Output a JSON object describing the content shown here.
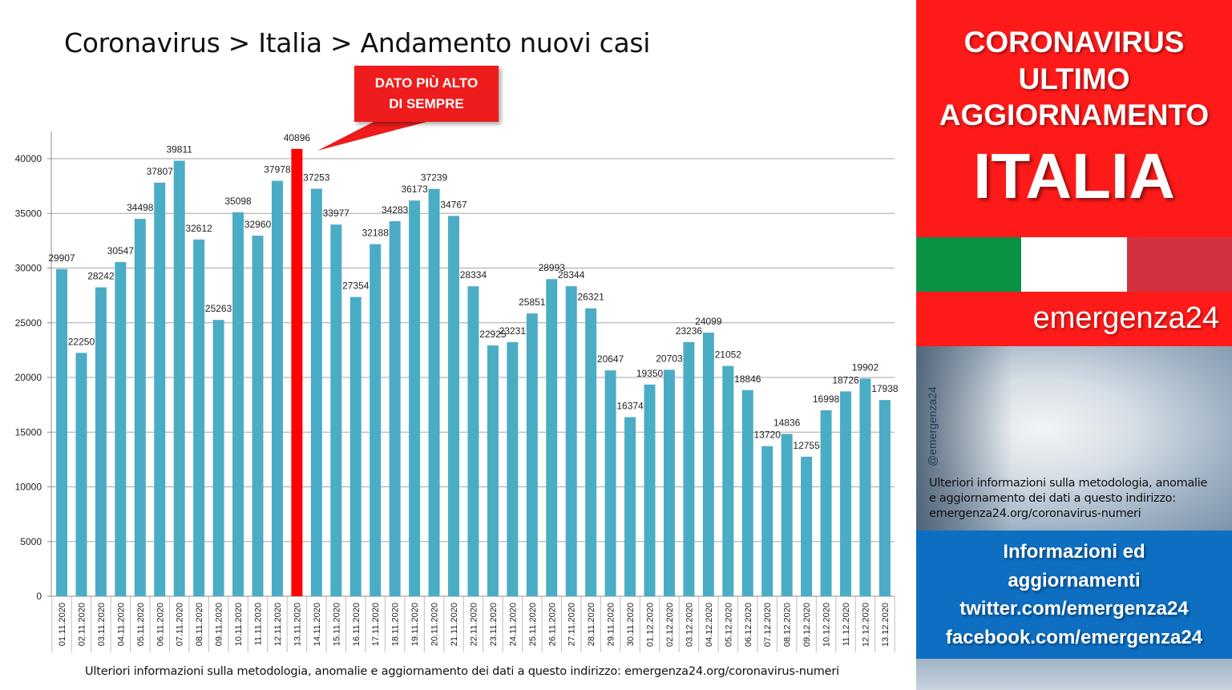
{
  "title": "Coronavirus > Italia > Andamento nuovi casi",
  "callout": {
    "line1": "DATO PIÙ ALTO",
    "line2": "DI SEMPRE"
  },
  "footnote": "Ulteriori informazioni sulla metodologia, anomalie e aggiornamento dei dati a questo indirizzo: emergenza24.org/coronavirus-numeri",
  "side": {
    "header_line1": "CORONAVIRUS",
    "header_line2": "ULTIMO",
    "header_line3": "AGGIORNAMENTO",
    "country": "ITALIA",
    "brand": "emergenza24",
    "handle": "@emergenza24",
    "info_line1": "Ulteriori informazioni sulla metodologia, anomalie",
    "info_line2": "e aggiornamento dei dati a questo indirizzo:",
    "info_line3": "emergenza24.org/coronavirus-numeri",
    "box_line1": "Informazioni ed",
    "box_line2": "aggiornamenti",
    "box_line3": "twitter.com/emergenza24",
    "box_line4": "facebook.com/emergenza24"
  },
  "colors": {
    "bar": "#4bacc6",
    "highlight": "#ff0000",
    "red_panel": "#ff1a1a",
    "blue_panel": "#0e6fc2",
    "flag_green": "#0a9244",
    "flag_white": "#ffffff",
    "flag_red": "#d2323f"
  },
  "chart_data": {
    "type": "bar",
    "title": "Coronavirus > Italia > Andamento nuovi casi",
    "xlabel": "",
    "ylabel": "",
    "ylim": [
      0,
      42000
    ],
    "yticks": [
      0,
      5000,
      10000,
      15000,
      20000,
      25000,
      30000,
      35000,
      40000
    ],
    "grid": true,
    "highlight_category": "13.11.2020",
    "categories": [
      "01.11.2020",
      "02.11.2020",
      "03.11.2020",
      "04.11.2020",
      "05.11.2020",
      "06.11.2020",
      "07.11.2020",
      "08.11.2020",
      "09.11.2020",
      "10.11.2020",
      "11.11.2020",
      "12.11.2020",
      "13.11.2020",
      "14.11.2020",
      "15.11.2020",
      "16.11.2020",
      "17.11.2020",
      "18.11.2020",
      "19.11.2020",
      "20.11.2020",
      "21.11.2020",
      "22.11.2020",
      "23.11.2020",
      "24.11.2020",
      "25.11.2020",
      "26.11.2020",
      "27.11.2020",
      "28.11.2020",
      "29.11.2020",
      "30.11.2020",
      "01.12.2020",
      "02.12.2020",
      "03.12.2020",
      "04.12.2020",
      "05.12.2020",
      "06.12.2020",
      "07.12.2020",
      "08.12.2020",
      "09.12.2020",
      "10.12.2020",
      "11.12.2020",
      "12.12.2020",
      "13.12.2020"
    ],
    "values": [
      29907,
      22250,
      28242,
      30547,
      34498,
      37807,
      39811,
      32612,
      25263,
      35098,
      32960,
      37978,
      40896,
      37253,
      33977,
      27354,
      32188,
      34283,
      36173,
      37239,
      34767,
      28334,
      22925,
      23231,
      25851,
      28993,
      28344,
      26321,
      20647,
      16374,
      19350,
      20703,
      23236,
      24099,
      21052,
      18846,
      13720,
      14836,
      12755,
      16998,
      18726,
      19902,
      17938
    ]
  }
}
